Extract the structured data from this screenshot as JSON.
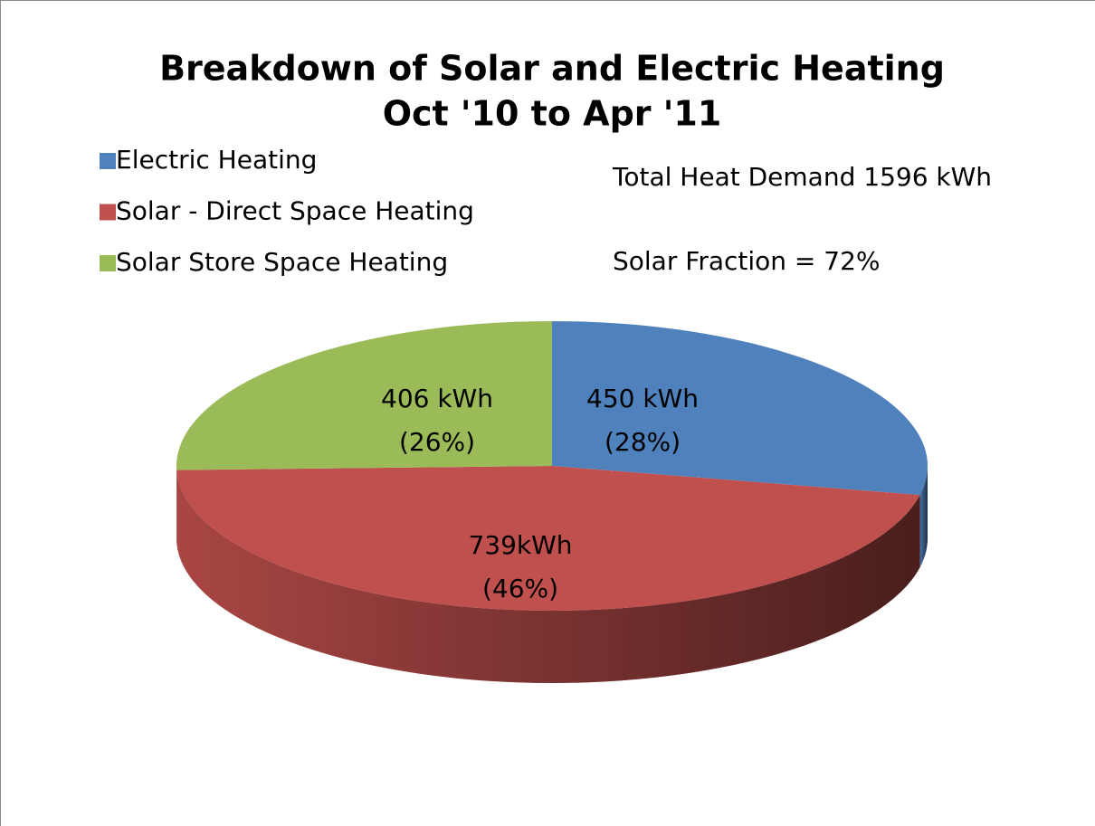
{
  "chart_data": {
    "type": "pie",
    "title": [
      "Breakdown of Solar and Electric Heating",
      "Oct '10 to Apr '11"
    ],
    "categories": [
      "Electric Heating",
      "Solar - Direct Space Heating",
      "Solar Store Space Heating"
    ],
    "values": [
      450,
      739,
      406
    ],
    "value_labels": [
      "450 kWh",
      "739kWh",
      "406 kWh"
    ],
    "percent_labels": [
      "(28%)",
      "(46%)",
      "(26%)"
    ],
    "colors": [
      "#4f81bd",
      "#c0504d",
      "#9bbb59"
    ],
    "annotations": [
      "Total Heat Demand 1596 kWh",
      "Solar Fraction = 72%"
    ],
    "legend": "top-left"
  }
}
